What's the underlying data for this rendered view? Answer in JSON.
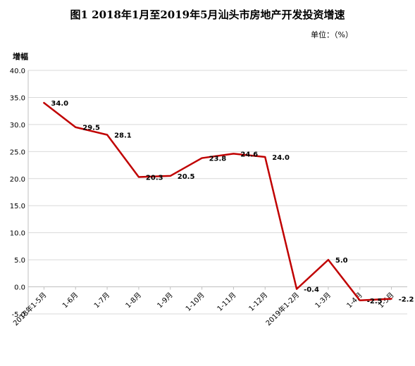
{
  "chart_data": {
    "type": "line",
    "title": "图1  2018年1月至2019年5月汕头市房地产开发投资增速",
    "unit_note": "单位：（%）",
    "ylabel": "增幅",
    "xlabel": "",
    "ylim": [
      -5.0,
      40.0
    ],
    "ytick_step": 5,
    "grid": true,
    "line_color": "#c00000",
    "categories": [
      "2018年1-5月",
      "1-6月",
      "1-7月",
      "1-8月",
      "1-9月",
      "1-10月",
      "1-11月",
      "1-12月",
      "2019年1-2月",
      "1-3月",
      "1-4月",
      "1-5月"
    ],
    "values": [
      34.0,
      29.5,
      28.1,
      20.3,
      20.5,
      23.8,
      24.6,
      24.0,
      -0.4,
      5.0,
      -2.5,
      -2.2
    ],
    "value_labels": [
      "34.0",
      "29.5",
      "28.1",
      "20.3",
      "20.5",
      "23.8",
      "24.6",
      "24.0",
      "-0.4",
      "5.0",
      "-2.5",
      "-2.2"
    ]
  }
}
